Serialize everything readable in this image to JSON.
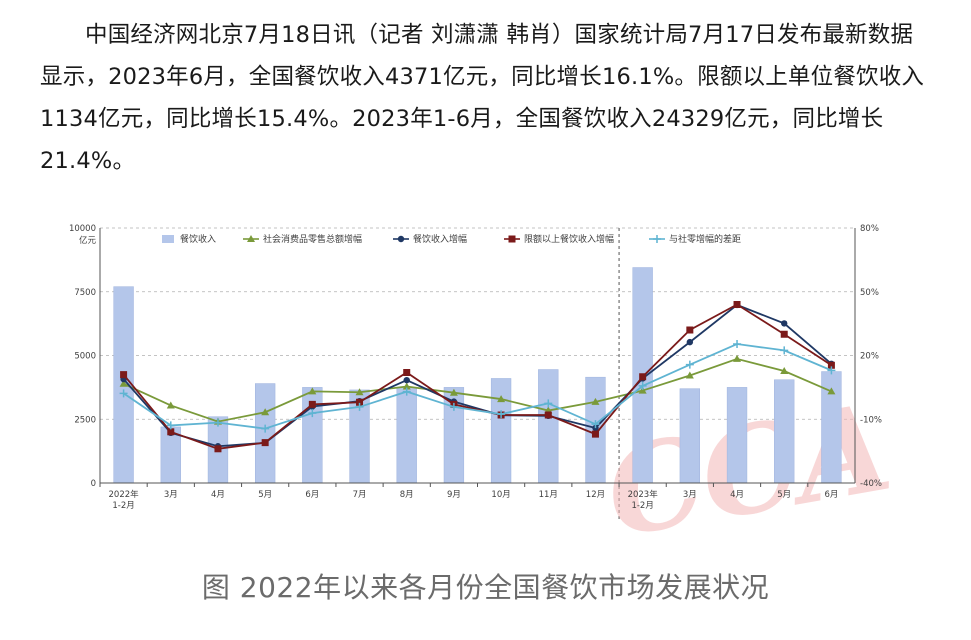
{
  "article": {
    "paragraph": "中国经济网北京7月18日讯（记者 刘潇潇 韩肖）国家统计局7月17日发布最新数据显示，2023年6月，全国餐饮收入4371亿元，同比增长16.1%。限额以上单位餐饮收入1134亿元，同比增长15.4%。2023年1-6月，全国餐饮收入24329亿元，同比增长21.4%。"
  },
  "caption": "图 2022年以来各月份全国餐饮市场发展状况",
  "watermark": "CCA",
  "colors": {
    "bar": "#b4c6ea",
    "retail": "#7a9a3a",
    "catering": "#1f3864",
    "above": "#7b1a1a",
    "diff": "#5fb4d2",
    "grid": "#b0b0b0",
    "watermark": "#f3b8b8"
  },
  "chart_data": {
    "type": "bar+line",
    "categories": [
      "2022年\n1-2月",
      "3月",
      "4月",
      "5月",
      "6月",
      "7月",
      "8月",
      "9月",
      "10月",
      "11月",
      "12月",
      "2023年\n1-2月",
      "3月",
      "4月",
      "5月",
      "6月"
    ],
    "left_axis": {
      "unit": "亿元",
      "ylim": [
        0,
        10000
      ],
      "ticks": [
        0,
        2500,
        5000,
        7500,
        10000
      ]
    },
    "right_axis": {
      "ylim": [
        -40,
        80
      ],
      "ticks": [
        "-40%",
        "-10%",
        "20%",
        "50%",
        "80%"
      ],
      "tick_values": [
        -40,
        -10,
        20,
        50,
        80
      ]
    },
    "grid": true,
    "legend_position": "top",
    "bars": {
      "name": "餐饮收入",
      "values": [
        7700,
        2200,
        2600,
        3900,
        3750,
        3650,
        3750,
        3750,
        4100,
        4450,
        4150,
        8450,
        3700,
        3750,
        4050,
        4371
      ]
    },
    "series": [
      {
        "name": "社会消费品零售总额增幅",
        "values": [
          6.7,
          -3.5,
          -11.1,
          -6.7,
          3.1,
          2.7,
          5.4,
          2.5,
          -0.5,
          -5.9,
          -1.8,
          3.5,
          10.6,
          18.4,
          12.7,
          3.1
        ]
      },
      {
        "name": "餐饮收入增幅",
        "values": [
          8.9,
          -16.4,
          -22.7,
          -21.1,
          -4.0,
          -1.5,
          8.4,
          -1.7,
          -8.1,
          -8.4,
          -14.1,
          9.2,
          26.3,
          43.8,
          35.1,
          16.1
        ]
      },
      {
        "name": "限额以上餐饮收入增幅",
        "values": [
          11.0,
          -15.9,
          -23.9,
          -21.0,
          -3.0,
          -2.0,
          12.0,
          -3.0,
          -8.0,
          -8.0,
          -17.0,
          10.0,
          32.0,
          44.0,
          30.0,
          15.4
        ]
      },
      {
        "name": "与社零增幅的差距",
        "values": [
          2.2,
          -12.9,
          -11.6,
          -14.4,
          -7.1,
          -4.2,
          3.0,
          -4.2,
          -7.6,
          -2.5,
          -12.3,
          5.7,
          15.7,
          25.4,
          22.4,
          13.0
        ]
      }
    ]
  }
}
